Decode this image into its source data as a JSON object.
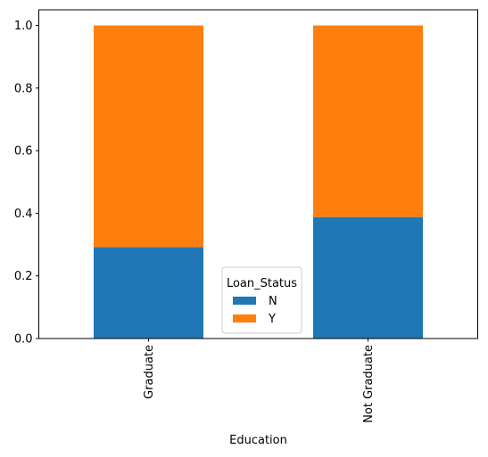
{
  "chart_data": {
    "type": "bar",
    "stacked": true,
    "categories": [
      "Graduate",
      "Not Graduate"
    ],
    "series": [
      {
        "name": "N",
        "values": [
          0.292,
          0.388
        ],
        "color": "#1f77b4"
      },
      {
        "name": "Y",
        "values": [
          0.708,
          0.612
        ],
        "color": "#ff7f0e"
      }
    ],
    "xlabel": "Education",
    "ylabel": "",
    "ylim": [
      0,
      1.05
    ],
    "yticks": [
      0.0,
      0.2,
      0.4,
      0.6,
      0.8,
      1.0
    ],
    "ytick_labels": [
      "0.0",
      "0.2",
      "0.4",
      "0.6",
      "0.8",
      "1.0"
    ],
    "legend": {
      "title": "Loan_Status",
      "placement": "lower-center"
    },
    "grid": false
  }
}
